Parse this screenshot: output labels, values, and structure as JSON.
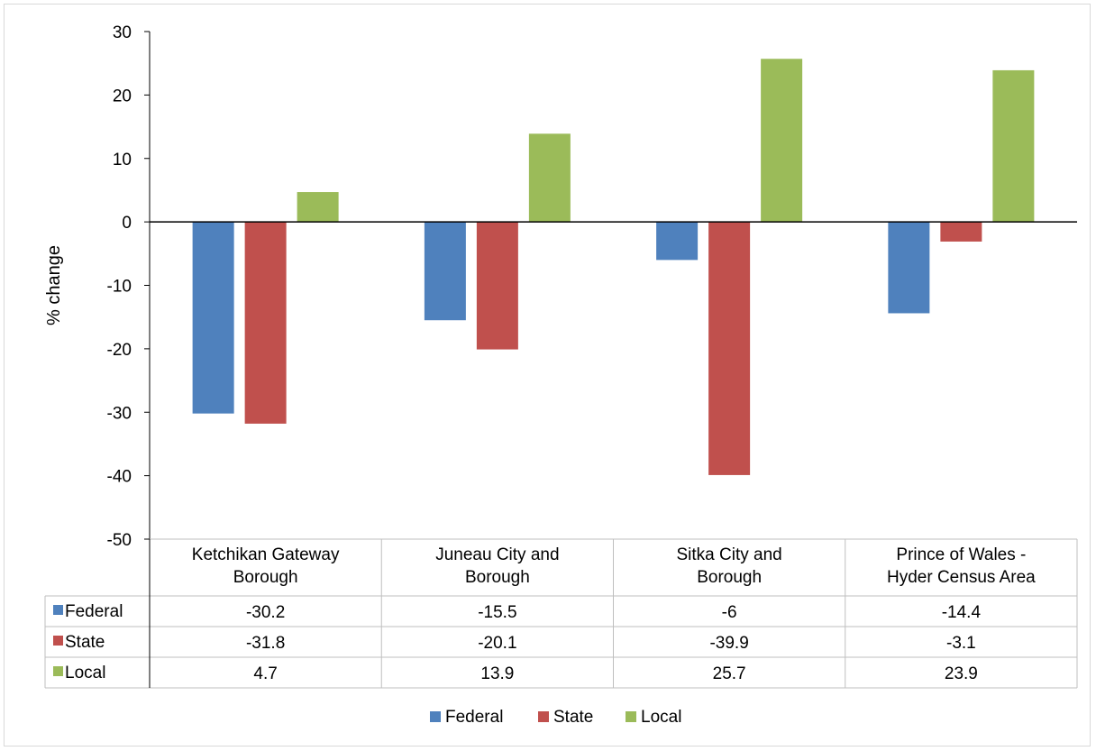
{
  "chart_data": {
    "type": "bar",
    "categories": [
      "Ketchikan Gateway Borough",
      "Juneau City and Borough",
      "Sitka City and Borough",
      "Prince of Wales - Hyder Census Area"
    ],
    "category_lines": [
      [
        "Ketchikan Gateway",
        "Borough"
      ],
      [
        "Juneau City and",
        "Borough"
      ],
      [
        "Sitka City and",
        "Borough"
      ],
      [
        "Prince of Wales -",
        "Hyder Census Area"
      ]
    ],
    "series": [
      {
        "name": "Federal",
        "color": "#4f81bd",
        "values": [
          -30.2,
          -15.5,
          -6,
          -14.4
        ],
        "labels": [
          "-30.2",
          "-15.5",
          "-6",
          "-14.4"
        ]
      },
      {
        "name": "State",
        "color": "#c0504d",
        "values": [
          -31.8,
          -20.1,
          -39.9,
          -3.1
        ],
        "labels": [
          "-31.8",
          "-20.1",
          "-39.9",
          "-3.1"
        ]
      },
      {
        "name": "Local",
        "color": "#9bbb59",
        "values": [
          4.7,
          13.9,
          25.7,
          23.9
        ],
        "labels": [
          "4.7",
          "13.9",
          "25.7",
          "23.9"
        ]
      }
    ],
    "ylabel": "% change",
    "ylim": [
      -50,
      30
    ],
    "yticks": [
      30,
      20,
      10,
      0,
      -10,
      -20,
      -30,
      -40,
      -50
    ],
    "grid": false,
    "data_table": true,
    "legend_position": "bottom"
  }
}
